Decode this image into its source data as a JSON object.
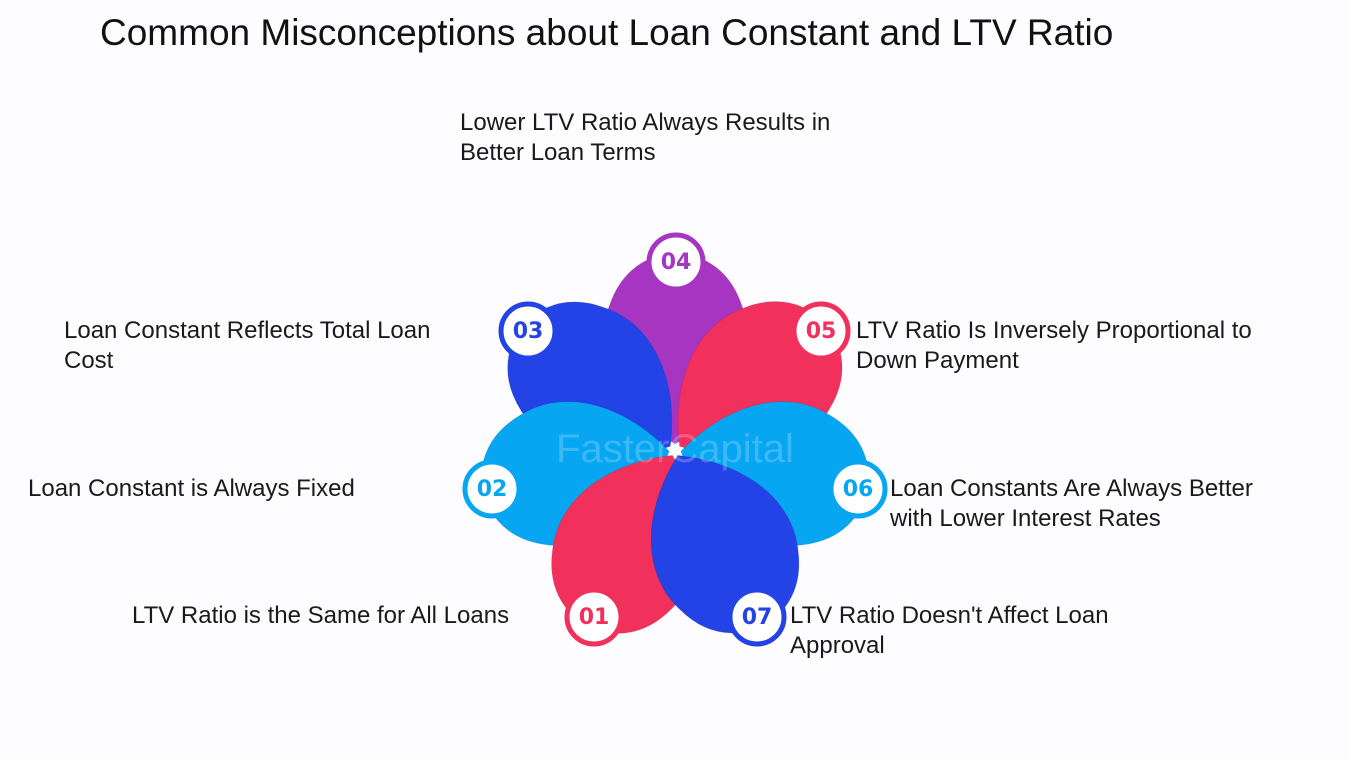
{
  "header": {
    "title": "Common Misconceptions about Loan Constant and LTV Ratio"
  },
  "watermark": "FasterCapital",
  "items": [
    {
      "number": "01",
      "text": "LTV Ratio is the Same for All Loans",
      "color": "#f2305c"
    },
    {
      "number": "02",
      "text": "Loan Constant is Always Fixed",
      "color": "#06a6f2"
    },
    {
      "number": "03",
      "text": "Loan Constant Reflects Total Loan Cost",
      "color": "#2343e6"
    },
    {
      "number": "04",
      "text": "Lower LTV Ratio Always Results in Better Loan Terms",
      "color": "#a636c2"
    },
    {
      "number": "05",
      "text": "LTV Ratio Is Inversely Proportional to Down Payment",
      "color": "#f2305c"
    },
    {
      "number": "06",
      "text": "Loan Constants Are Always Better with Lower Interest Rates",
      "color": "#06a6f2"
    },
    {
      "number": "07",
      "text": "LTV Ratio Doesn't Affect Loan Approval",
      "color": "#2343e6"
    }
  ]
}
